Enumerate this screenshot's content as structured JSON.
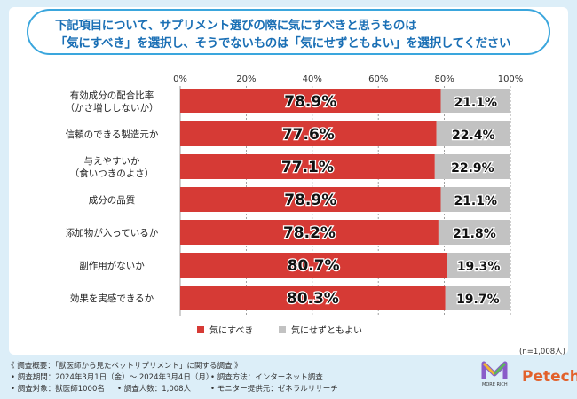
{
  "title_lines": [
    "下記項目について、サプリメント選びの際に気にすべきと思うものは",
    "「気にすべき」を選択し、そうでないものは「気にせずともよい」を選択してください"
  ],
  "chart_data": {
    "type": "bar",
    "orientation": "horizontal",
    "stacked": true,
    "percent_axis": true,
    "xlim": [
      0,
      100
    ],
    "xticks": [
      "0%",
      "20%",
      "40%",
      "60%",
      "80%",
      "100%"
    ],
    "xtick_values": [
      0,
      20,
      40,
      60,
      80,
      100
    ],
    "categories": [
      [
        "有効成分の配合比率",
        "（かさ増ししないか）"
      ],
      [
        "信頼のできる製造元か"
      ],
      [
        "与えやすいか",
        "（食いつきのよさ）"
      ],
      [
        "成分の品質"
      ],
      [
        "添加物が入っているか"
      ],
      [
        "副作用がないか"
      ],
      [
        "効果を実感できるか"
      ]
    ],
    "series": [
      {
        "name": "気にすべき",
        "color": "#d63a35",
        "values": [
          78.9,
          77.6,
          77.1,
          78.9,
          78.2,
          80.7,
          80.3
        ],
        "labels": [
          "78.9%",
          "77.6%",
          "77.1%",
          "78.9%",
          "78.2%",
          "80.7%",
          "80.3%"
        ]
      },
      {
        "name": "気にせずともよい",
        "color": "#c2c2c2",
        "values": [
          21.1,
          22.4,
          22.9,
          21.1,
          21.8,
          19.3,
          19.7
        ],
        "labels": [
          "21.1%",
          "22.4%",
          "22.9%",
          "21.1%",
          "21.8%",
          "19.3%",
          "19.7%"
        ]
      }
    ],
    "legend_position": "bottom-center"
  },
  "sample_size": "(n=1,008人)",
  "footer": {
    "survey_overview": "《 調査概要：「獣医師から見たペットサプリメント」に関する調査 》",
    "period": "• 調査期間：2024年3月1日（金）～ 2024年3月4日（月）",
    "method": "• 調査方法：インターネット調査",
    "subjects": "• 調査対象：獣医師1000名",
    "respondents": "• 調査人数：1,008人",
    "provider": "• モニター提供元：ゼネラルリサーチ"
  },
  "logo_caption": "MORE RICH",
  "brand": "Petech"
}
